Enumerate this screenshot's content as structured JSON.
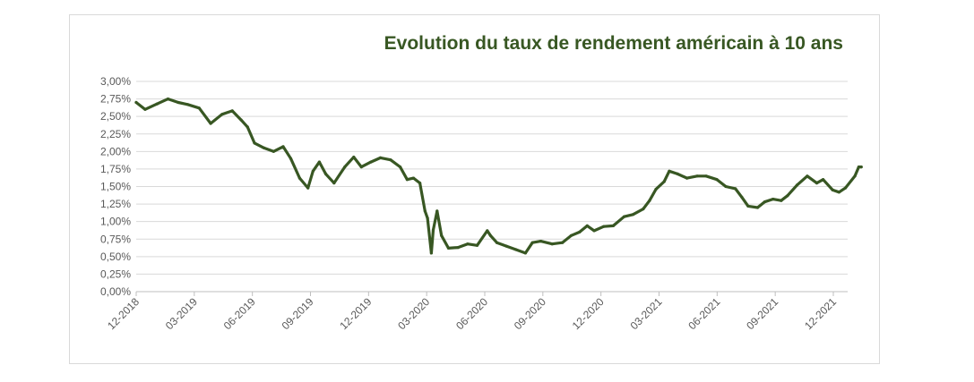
{
  "chart_data": {
    "type": "line",
    "title": "Evolution du taux de rendement américain à 10 ans",
    "xlabel": "",
    "ylabel": "",
    "ylim": [
      0,
      3
    ],
    "grid": true,
    "legend": "none",
    "y_ticks": [
      "0,00%",
      "0,25%",
      "0,50%",
      "0,75%",
      "1,00%",
      "1,25%",
      "1,50%",
      "1,75%",
      "2,00%",
      "2,25%",
      "2,50%",
      "2,75%",
      "3,00%"
    ],
    "x_ticks": [
      "12-2018",
      "03-2019",
      "06-2019",
      "09-2019",
      "12-2019",
      "03-2020",
      "06-2020",
      "09-2020",
      "12-2020",
      "03-2021",
      "06-2021",
      "09-2021",
      "12-2021"
    ],
    "series": [
      {
        "color": "#385723",
        "x": [
          "2018-12-01",
          "2018-12-15",
          "2019-01-03",
          "2019-01-20",
          "2019-02-05",
          "2019-02-20",
          "2019-03-10",
          "2019-03-28",
          "2019-04-15",
          "2019-05-01",
          "2019-05-15",
          "2019-05-25",
          "2019-06-05",
          "2019-06-20",
          "2019-07-05",
          "2019-07-20",
          "2019-08-01",
          "2019-08-15",
          "2019-08-28",
          "2019-09-05",
          "2019-09-15",
          "2019-09-25",
          "2019-10-08",
          "2019-10-25",
          "2019-11-08",
          "2019-11-20",
          "2019-12-05",
          "2019-12-20",
          "2020-01-05",
          "2020-01-20",
          "2020-01-31",
          "2020-02-10",
          "2020-02-20",
          "2020-02-28",
          "2020-03-03",
          "2020-03-09",
          "2020-03-12",
          "2020-03-18",
          "2020-03-25",
          "2020-04-05",
          "2020-04-20",
          "2020-05-05",
          "2020-05-20",
          "2020-06-05",
          "2020-06-10",
          "2020-06-20",
          "2020-07-05",
          "2020-07-20",
          "2020-08-04",
          "2020-08-15",
          "2020-08-28",
          "2020-09-15",
          "2020-10-01",
          "2020-10-15",
          "2020-10-28",
          "2020-11-09",
          "2020-11-20",
          "2020-12-05",
          "2020-12-20",
          "2021-01-06",
          "2021-01-20",
          "2021-02-05",
          "2021-02-15",
          "2021-02-25",
          "2021-03-10",
          "2021-03-18",
          "2021-03-31",
          "2021-04-15",
          "2021-05-01",
          "2021-05-15",
          "2021-06-01",
          "2021-06-15",
          "2021-06-30",
          "2021-07-10",
          "2021-07-20",
          "2021-08-04",
          "2021-08-15",
          "2021-08-28",
          "2021-09-10",
          "2021-09-20",
          "2021-10-05",
          "2021-10-21",
          "2021-11-05",
          "2021-11-15",
          "2021-11-30",
          "2021-12-10",
          "2021-12-20",
          "2022-01-04",
          "2022-01-10",
          "2022-01-14"
        ],
        "y": [
          2.7,
          2.6,
          2.68,
          2.75,
          2.7,
          2.67,
          2.62,
          2.4,
          2.53,
          2.58,
          2.45,
          2.35,
          2.12,
          2.05,
          2.0,
          2.07,
          1.9,
          1.62,
          1.48,
          1.72,
          1.85,
          1.68,
          1.55,
          1.78,
          1.92,
          1.78,
          1.85,
          1.91,
          1.88,
          1.78,
          1.6,
          1.62,
          1.55,
          1.15,
          1.05,
          0.55,
          0.88,
          1.15,
          0.8,
          0.62,
          0.63,
          0.68,
          0.66,
          0.87,
          0.8,
          0.7,
          0.65,
          0.6,
          0.55,
          0.7,
          0.72,
          0.68,
          0.7,
          0.8,
          0.85,
          0.94,
          0.87,
          0.93,
          0.94,
          1.07,
          1.1,
          1.18,
          1.3,
          1.46,
          1.57,
          1.72,
          1.68,
          1.62,
          1.65,
          1.65,
          1.6,
          1.5,
          1.47,
          1.35,
          1.22,
          1.2,
          1.28,
          1.32,
          1.3,
          1.37,
          1.52,
          1.65,
          1.55,
          1.6,
          1.45,
          1.42,
          1.48,
          1.65,
          1.78,
          1.78
        ]
      }
    ]
  }
}
